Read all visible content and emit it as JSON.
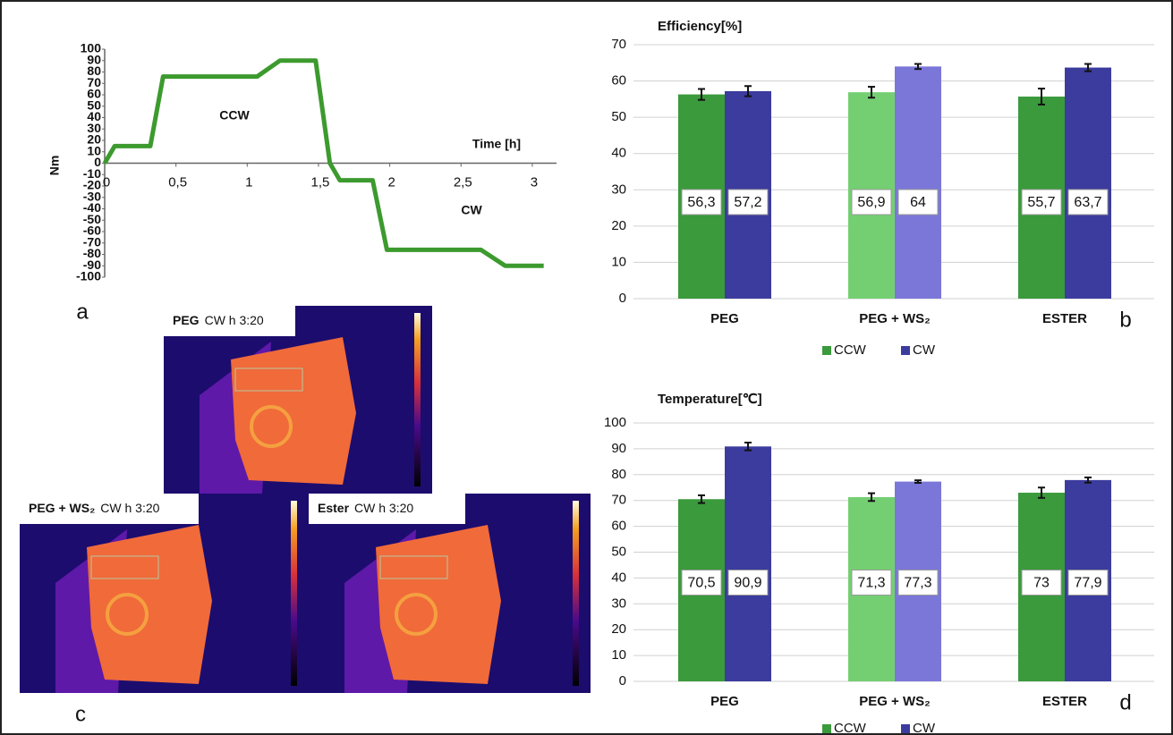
{
  "chart_data": [
    {
      "type": "line",
      "panel": "a",
      "x_label": "Time [h]",
      "y_label": "Nm",
      "annotations": [
        "CCW",
        "CW"
      ],
      "x": [
        0,
        0.07,
        0.32,
        0.41,
        1.07,
        1.23,
        1.48,
        1.58,
        1.65,
        1.88,
        1.98,
        2.64,
        2.81,
        3.08
      ],
      "values": [
        0,
        15,
        15,
        76,
        76,
        90,
        90,
        0,
        -15,
        -15,
        -76,
        -76,
        -90,
        -90
      ],
      "color": "#3c9a2e",
      "xlim": [
        0,
        3.17
      ],
      "ylim": [
        -100,
        100
      ],
      "xticks": [
        0,
        {
          "value": 0.5,
          "label": "0,5"
        },
        1,
        {
          "value": 1.5,
          "label": "1,5"
        },
        2,
        {
          "value": 2.5,
          "label": "2,5"
        },
        3
      ],
      "yticks": [
        -100,
        -90,
        -80,
        -70,
        -60,
        -50,
        -40,
        -30,
        -20,
        -10,
        0,
        10,
        20,
        30,
        40,
        50,
        60,
        70,
        80,
        90,
        100
      ]
    },
    {
      "type": "bar",
      "panel": "b",
      "title": "Efficiency[%]",
      "categories": [
        "PEG",
        "PEG + WS₂",
        "ESTER"
      ],
      "series": [
        {
          "name": "CCW",
          "color": "#3a9a3c",
          "bar_colors": [
            "#3a9a3c",
            "#74cf72",
            "#3a9a3c"
          ],
          "values": [
            56.3,
            56.9,
            55.7
          ],
          "value_labels": [
            "56,3",
            "56,9",
            "55,7"
          ],
          "errors": [
            1.5,
            1.5,
            2.2
          ]
        },
        {
          "name": "CW",
          "color": "#3c3c9e",
          "bar_colors": [
            "#3c3c9e",
            "#7b77d9",
            "#3c3c9e"
          ],
          "values": [
            57.2,
            64,
            63.7
          ],
          "value_labels": [
            "57,2",
            "64",
            "63,7"
          ],
          "errors": [
            1.4,
            0.7,
            1
          ]
        }
      ],
      "ylim": [
        0,
        70
      ],
      "yticks": [
        0,
        10,
        20,
        30,
        40,
        50,
        60,
        70
      ],
      "grid": true
    },
    {
      "type": "bar",
      "panel": "d",
      "title": "Temperature[℃]",
      "categories": [
        "PEG",
        "PEG + WS₂",
        "ESTER"
      ],
      "series": [
        {
          "name": "CCW",
          "color": "#3a9a3c",
          "bar_colors": [
            "#3a9a3c",
            "#74cf72",
            "#3a9a3c"
          ],
          "values": [
            70.5,
            71.3,
            73
          ],
          "value_labels": [
            "70,5",
            "71,3",
            "73"
          ],
          "errors": [
            1.5,
            1.5,
            2
          ]
        },
        {
          "name": "CW",
          "color": "#3c3c9e",
          "bar_colors": [
            "#3c3c9e",
            "#7b77d9",
            "#3c3c9e"
          ],
          "values": [
            90.9,
            77.3,
            77.9
          ],
          "value_labels": [
            "90,9",
            "77,3",
            "77,9"
          ],
          "errors": [
            1.5,
            0.5,
            1
          ]
        }
      ],
      "ylim": [
        0,
        100
      ],
      "yticks": [
        0,
        10,
        20,
        30,
        40,
        50,
        60,
        70,
        80,
        90,
        100
      ],
      "grid": true
    }
  ],
  "thermal_images": {
    "panel": "c",
    "items": [
      {
        "title": "PEG",
        "caption": "CW h 3:20"
      },
      {
        "title": "PEG + WS₂",
        "caption": "CW h 3:20"
      },
      {
        "title": "Ester",
        "caption": "CW h 3:20"
      }
    ]
  }
}
